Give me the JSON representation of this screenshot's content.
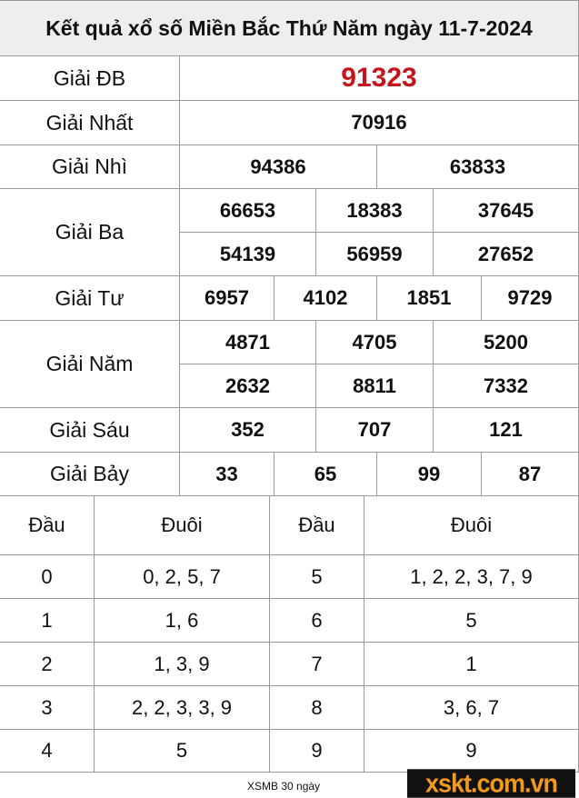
{
  "title": "Kết quả xổ số Miền Bắc Thứ Năm ngày 11-7-2024",
  "prizes": {
    "db": {
      "label": "Giải ĐB",
      "values": [
        "91323"
      ]
    },
    "nhat": {
      "label": "Giải Nhất",
      "values": [
        "70916"
      ]
    },
    "nhi": {
      "label": "Giải Nhì",
      "values": [
        "94386",
        "63833"
      ]
    },
    "ba": {
      "label": "Giải Ba",
      "values": [
        "66653",
        "18383",
        "37645",
        "54139",
        "56959",
        "27652"
      ]
    },
    "tu": {
      "label": "Giải Tư",
      "values": [
        "6957",
        "4102",
        "1851",
        "9729"
      ]
    },
    "nam": {
      "label": "Giải Năm",
      "values": [
        "4871",
        "4705",
        "5200",
        "2632",
        "8811",
        "7332"
      ]
    },
    "sau": {
      "label": "Giải Sáu",
      "values": [
        "352",
        "707",
        "121"
      ]
    },
    "bay": {
      "label": "Giải Bảy",
      "values": [
        "33",
        "65",
        "99",
        "87"
      ]
    }
  },
  "loto": {
    "headers": [
      "Đầu",
      "Đuôi",
      "Đầu",
      "Đuôi"
    ],
    "rows": [
      [
        "0",
        "0, 2, 5, 7",
        "5",
        "1, 2, 2, 3, 7, 9"
      ],
      [
        "1",
        "1, 6",
        "6",
        "5"
      ],
      [
        "2",
        "1, 3, 9",
        "7",
        "1"
      ],
      [
        "3",
        "2, 2, 3, 3, 9",
        "8",
        "3, 6, 7"
      ],
      [
        "4",
        "5",
        "9",
        "9"
      ]
    ]
  },
  "footer": {
    "link": "XSMB 30 ngày",
    "logo": "xskt.com.vn"
  },
  "colors": {
    "special": "#c4161c",
    "title_bg": "#eeeeee",
    "logo": "#f39a1c"
  }
}
